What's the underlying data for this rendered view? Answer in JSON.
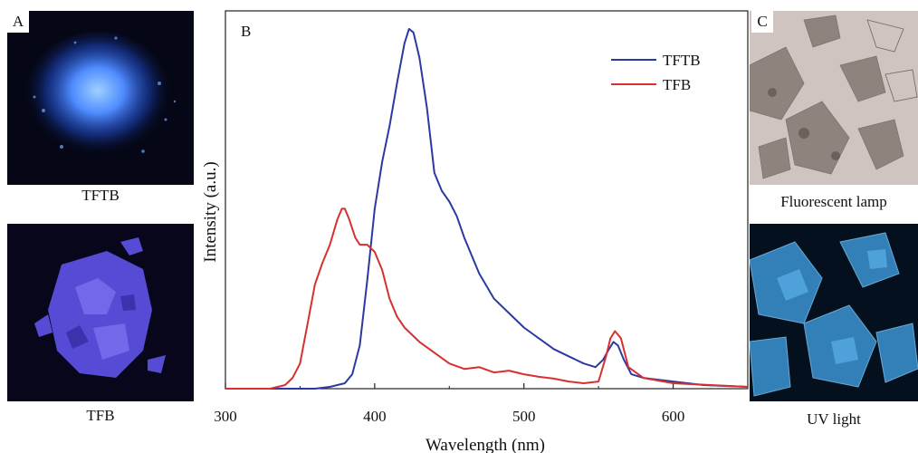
{
  "panels": {
    "a_label": "A",
    "b_label": "B",
    "c_label": "C",
    "a_top_caption": "TFTB",
    "a_bottom_caption": "TFB",
    "c_top_caption": "Fluorescent lamp",
    "c_bottom_caption": "UV light"
  },
  "colors": {
    "tftb_glow": "#4f8cff",
    "tfb_glow": "#5b4fe0",
    "uv_crystal": "#3f9de0",
    "lamp_background": "#cfc4c0"
  },
  "chart_data": {
    "type": "line",
    "title": "",
    "xlabel": "Wavelength (nm)",
    "ylabel": "Intensity (a.u.)",
    "xlim": [
      300,
      650
    ],
    "ylim": [
      0,
      1.05
    ],
    "xticks": [
      300,
      400,
      500,
      600
    ],
    "y_tick_labels": false,
    "grid": false,
    "legend_position": "top-right",
    "series": [
      {
        "name": "TFTB",
        "color": "#2a3aa0",
        "x": [
          330,
          360,
          370,
          380,
          385,
          390,
          395,
          400,
          405,
          410,
          415,
          420,
          423,
          426,
          430,
          435,
          440,
          445,
          450,
          455,
          460,
          470,
          480,
          490,
          500,
          510,
          520,
          530,
          540,
          548,
          553,
          557,
          560,
          563,
          567,
          572,
          580,
          600,
          620,
          650
        ],
        "y": [
          0.0,
          0.0,
          0.005,
          0.015,
          0.04,
          0.12,
          0.3,
          0.5,
          0.63,
          0.73,
          0.85,
          0.96,
          1.0,
          0.99,
          0.92,
          0.78,
          0.6,
          0.55,
          0.52,
          0.48,
          0.42,
          0.32,
          0.25,
          0.21,
          0.17,
          0.14,
          0.11,
          0.09,
          0.07,
          0.06,
          0.08,
          0.11,
          0.13,
          0.12,
          0.08,
          0.04,
          0.03,
          0.02,
          0.01,
          0.005
        ]
      },
      {
        "name": "TFB",
        "color": "#d63030",
        "x": [
          330,
          340,
          345,
          350,
          355,
          360,
          365,
          370,
          375,
          378,
          380,
          383,
          387,
          390,
          395,
          400,
          405,
          410,
          415,
          420,
          430,
          440,
          450,
          460,
          470,
          480,
          490,
          500,
          510,
          520,
          530,
          540,
          550,
          555,
          558,
          561,
          565,
          570,
          580,
          600,
          650
        ],
        "y": [
          0.0,
          0.01,
          0.03,
          0.07,
          0.18,
          0.29,
          0.35,
          0.4,
          0.47,
          0.5,
          0.5,
          0.47,
          0.42,
          0.4,
          0.4,
          0.38,
          0.33,
          0.25,
          0.2,
          0.17,
          0.13,
          0.1,
          0.07,
          0.055,
          0.06,
          0.045,
          0.05,
          0.04,
          0.033,
          0.028,
          0.02,
          0.015,
          0.02,
          0.09,
          0.14,
          0.16,
          0.14,
          0.06,
          0.03,
          0.015,
          0.005
        ]
      }
    ]
  }
}
